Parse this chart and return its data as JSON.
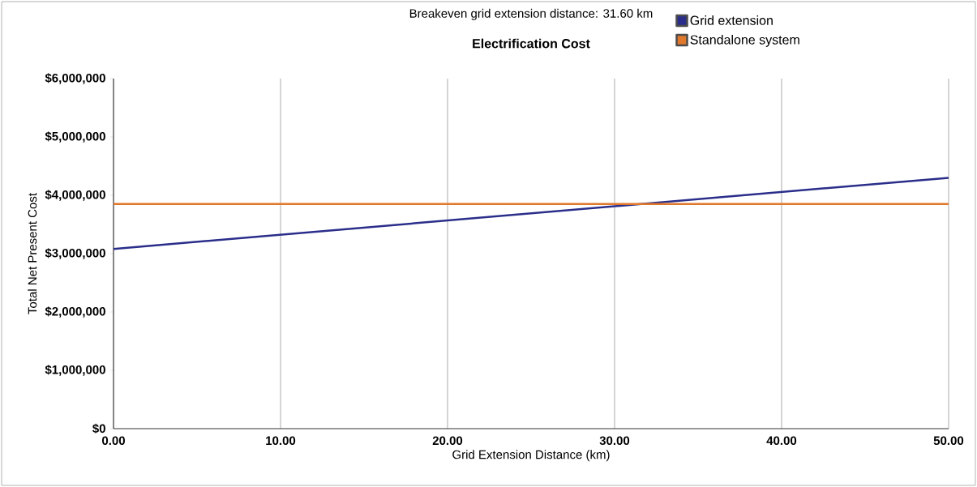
{
  "chart_data": {
    "type": "line",
    "subtitle": "Breakeven grid extension distance: 31.60 km",
    "title": "Electrification Cost",
    "xlabel": "Grid Extension Distance (km)",
    "ylabel": "Total Net Present Cost",
    "x": [
      0,
      50
    ],
    "series": [
      {
        "name": "Grid extension",
        "color": "#2a2e8a",
        "values": [
          3080000,
          4300000
        ]
      },
      {
        "name": "Standalone system",
        "color": "#e0782c",
        "values": [
          3850000,
          3850000
        ]
      }
    ],
    "xlim": [
      0,
      50
    ],
    "ylim": [
      0,
      6000000
    ],
    "xticks": [
      {
        "value": 0,
        "label": "0.00"
      },
      {
        "value": 10,
        "label": "10.00"
      },
      {
        "value": 20,
        "label": "20.00"
      },
      {
        "value": 30,
        "label": "30.00"
      },
      {
        "value": 40,
        "label": "40.00"
      },
      {
        "value": 50,
        "label": "50.00"
      }
    ],
    "yticks": [
      {
        "value": 0,
        "label": "$0"
      },
      {
        "value": 1000000,
        "label": "$1,000,000"
      },
      {
        "value": 2000000,
        "label": "$2,000,000"
      },
      {
        "value": 3000000,
        "label": "$3,000,000"
      },
      {
        "value": 4000000,
        "label": "$4,000,000"
      },
      {
        "value": 5000000,
        "label": "$5,000,000"
      },
      {
        "value": 6000000,
        "label": "$6,000,000"
      }
    ],
    "grid": "x",
    "legend": "top right",
    "marker": "none",
    "line_style": "solid"
  }
}
